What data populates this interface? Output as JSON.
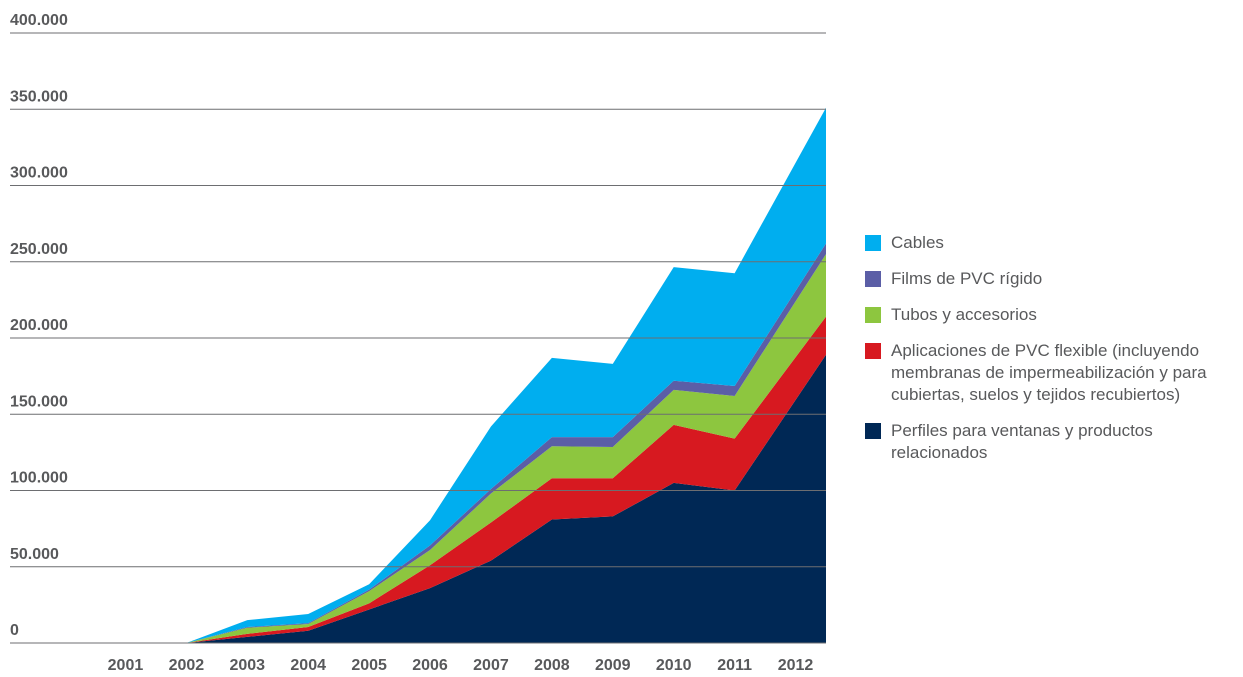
{
  "chart_data": {
    "type": "stacked-area",
    "categories": [
      "2001",
      "2002",
      "2003",
      "2004",
      "2005",
      "2006",
      "2007",
      "2008",
      "2009",
      "2010",
      "2011",
      "2012"
    ],
    "series": [
      {
        "name": "Perfiles para ventanas y productos relacionados",
        "color": "#002855",
        "values": [
          0,
          0,
          4000,
          8000,
          22000,
          36000,
          54000,
          81000,
          83000,
          105000,
          100000,
          189000
        ]
      },
      {
        "name": "Aplicaciones de PVC flexible (incluyendo membranas de impermeabilización y para cubiertas, suelos y tejidos recubiertos)",
        "color": "#d71920",
        "values": [
          0,
          0,
          2000,
          2500,
          4000,
          15000,
          25000,
          27000,
          25000,
          38000,
          34000,
          25000
        ]
      },
      {
        "name": "Tubos y accesorios",
        "color": "#8dc63f",
        "values": [
          0,
          0,
          4000,
          2000,
          8000,
          10000,
          19000,
          21000,
          20500,
          23000,
          28000,
          41000
        ]
      },
      {
        "name": "Films de PVC rígido",
        "color": "#5b5ea6",
        "values": [
          0,
          0,
          500,
          500,
          1000,
          3000,
          3000,
          6000,
          6500,
          6000,
          6500,
          7000
        ]
      },
      {
        "name": "Cables",
        "color": "#00aeef",
        "values": [
          0,
          0,
          4500,
          6000,
          3500,
          16500,
          41000,
          52000,
          48000,
          74500,
          74000,
          89000
        ]
      }
    ],
    "ylim": [
      0,
      400000
    ],
    "yticks": [
      0,
      {
        "value": 50000,
        "label": "50.000"
      },
      {
        "value": 100000,
        "label": "100.000"
      },
      {
        "value": 150000,
        "label": "150.000"
      },
      {
        "value": 200000,
        "label": "200.000"
      },
      {
        "value": 250000,
        "label": "250.000"
      },
      {
        "value": 300000,
        "label": "300.000"
      },
      {
        "value": 350000,
        "label": "350.000"
      },
      {
        "value": 400000,
        "label": "400.000"
      }
    ],
    "grid": true
  }
}
